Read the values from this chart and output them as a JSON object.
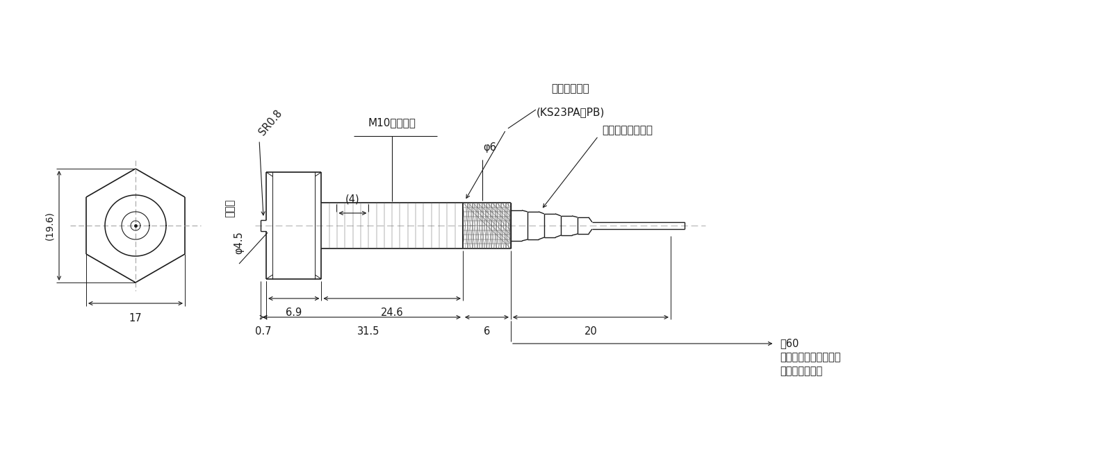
{
  "bg_color": "#ffffff",
  "line_color": "#1a1a1a",
  "font_size": 10.5,
  "font_size_small": 9.5,
  "label_19_6": "(19.6)",
  "label_17": "17",
  "label_SR0_8": "SR0.8",
  "label_flat": "平面部",
  "label_phi4_5": "φ4.5",
  "label_M10": "M10（並目）",
  "label_phi6": "φ6",
  "label_4": "(4)",
  "label_6_9": "6.9",
  "label_24_6": "24.6",
  "label_0_7": "0.7",
  "label_31_5": "31.5",
  "label_6": "6",
  "label_20": "20",
  "label_cartridge": "カートリッジ",
  "label_cartridge2": "(KS23PA／PB)",
  "label_cord": "コードプロテクタ",
  "label_approx60": "終60",
  "label_space1": "カートリッジ取外しに",
  "label_space2": "要するスペース"
}
